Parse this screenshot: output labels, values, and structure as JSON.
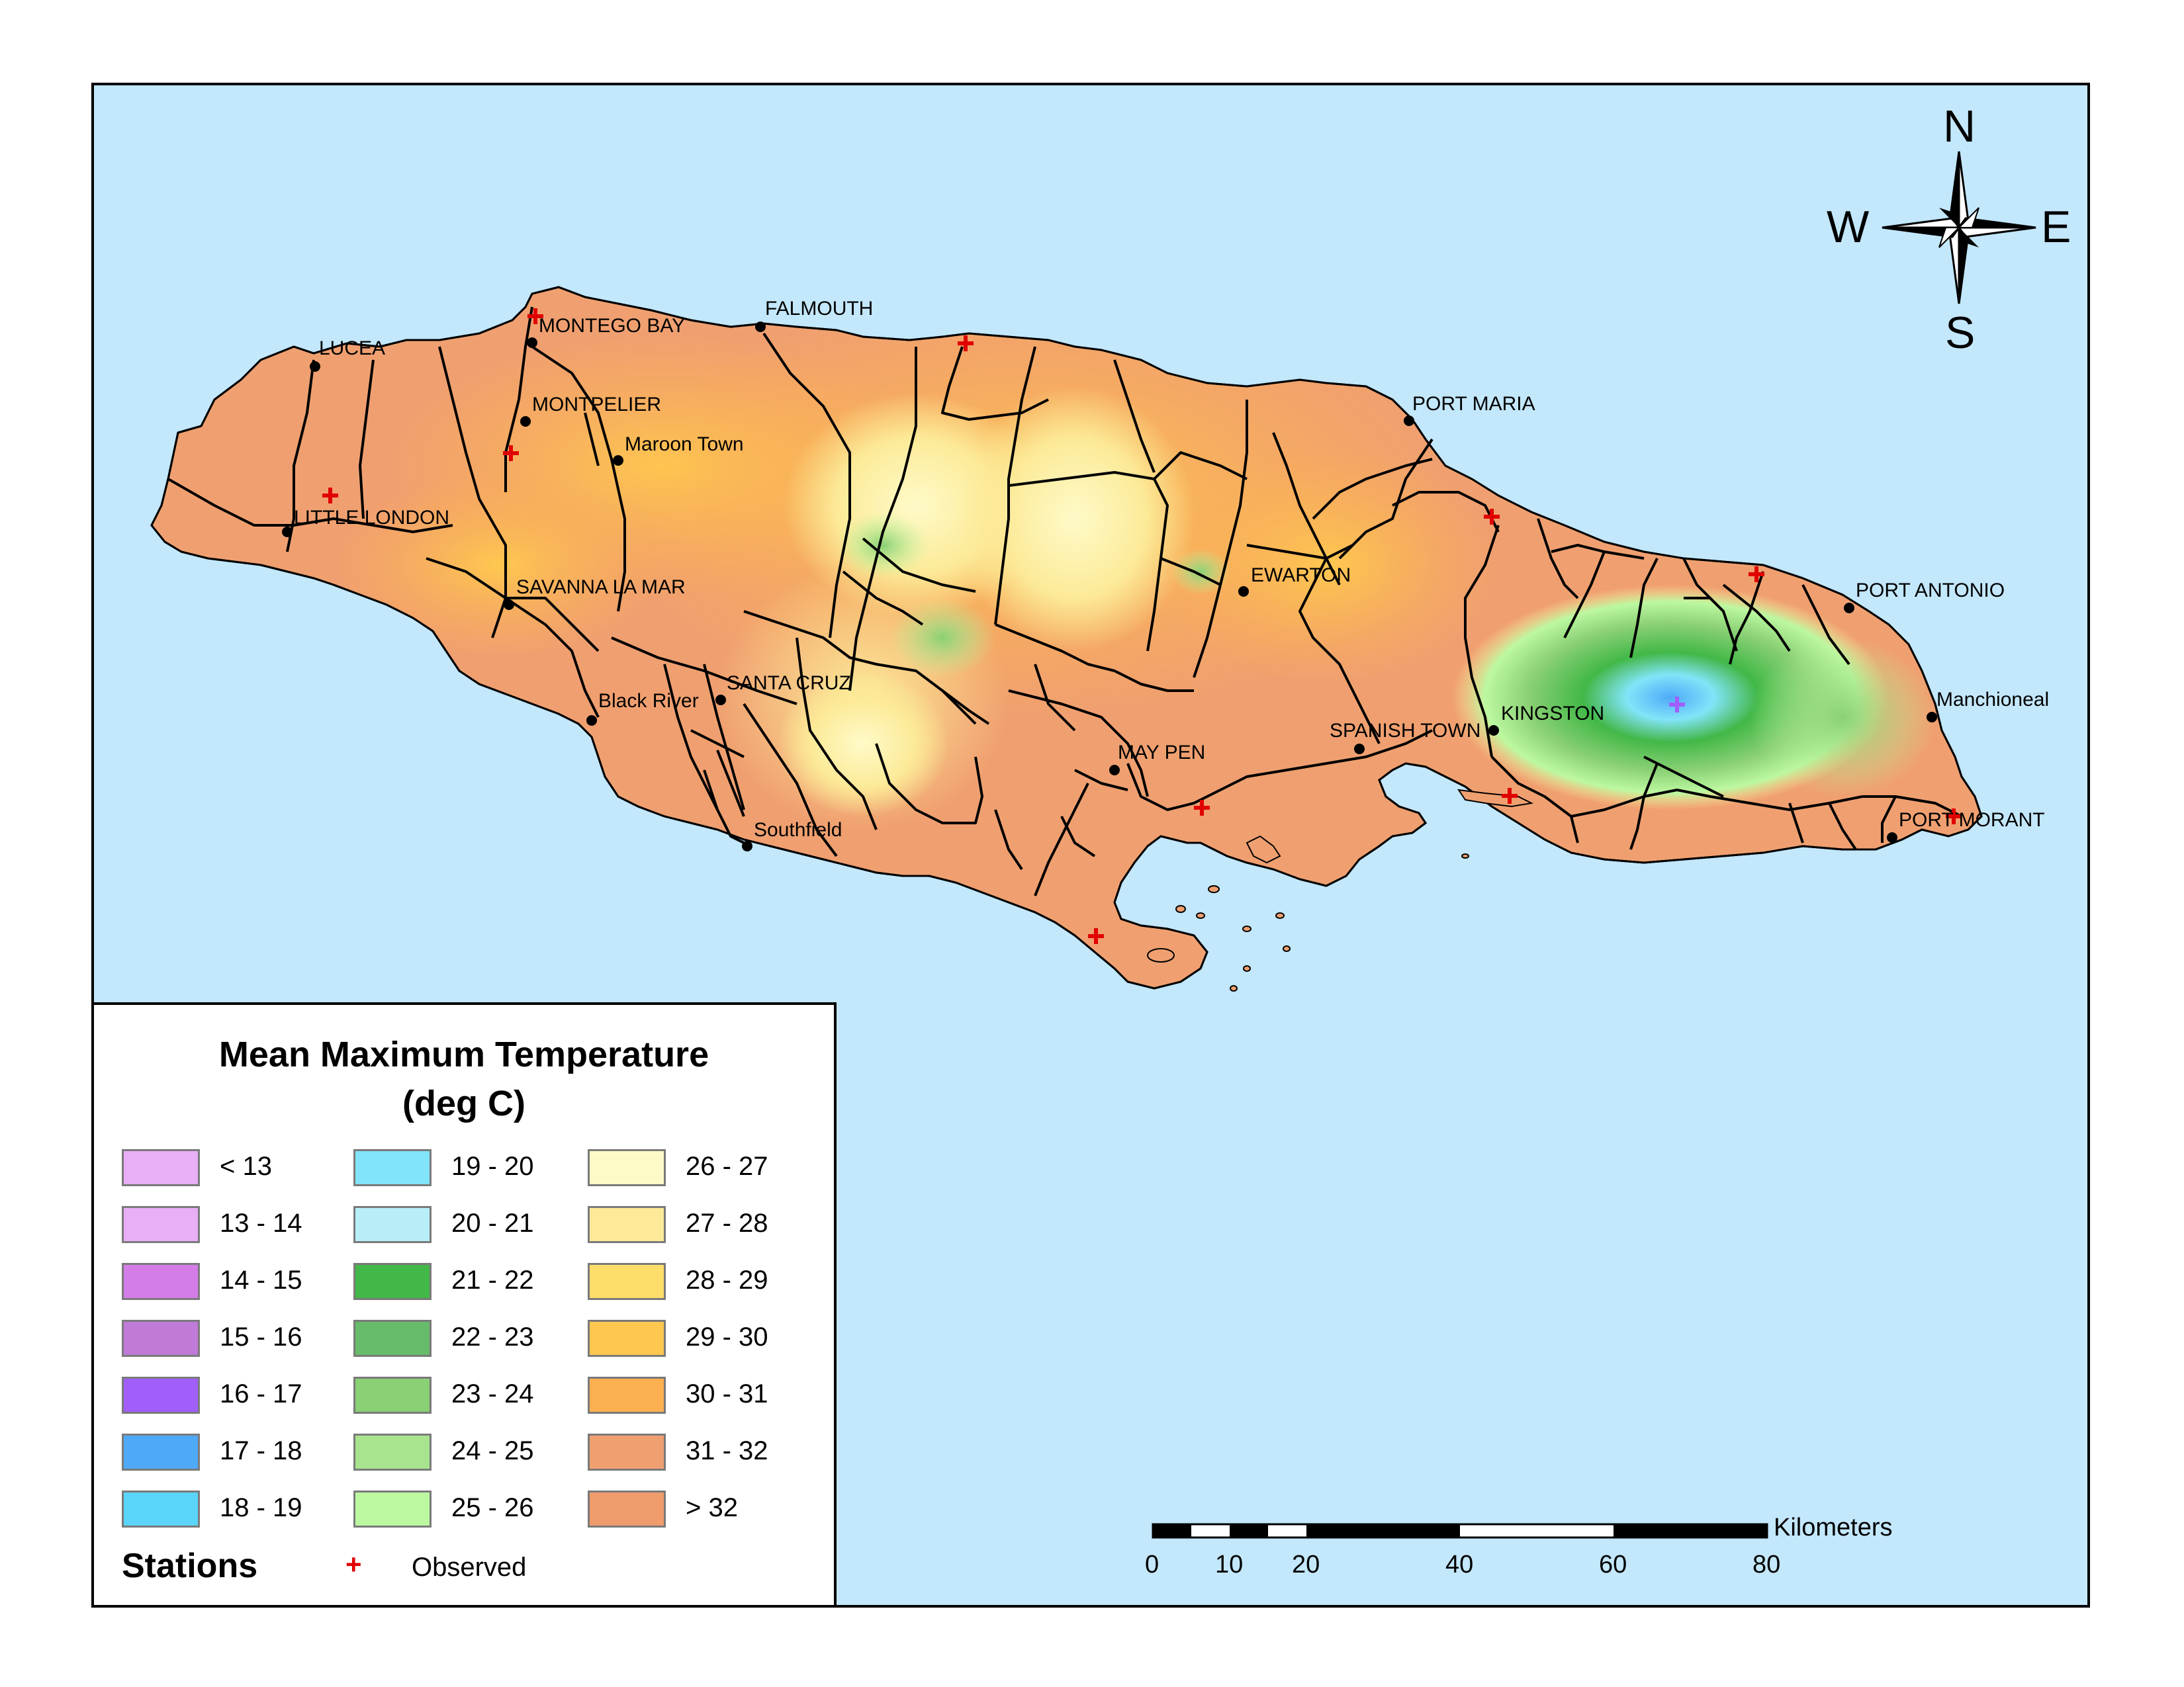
{
  "map": {
    "cities": [
      {
        "name": "LUCEA"
      },
      {
        "name": "MONTEGO BAY"
      },
      {
        "name": "FALMOUTH"
      },
      {
        "name": "MONTPELIER"
      },
      {
        "name": "Maroon Town"
      },
      {
        "name": "LITTLE LONDON"
      },
      {
        "name": "SAVANNA LA MAR"
      },
      {
        "name": "Black River"
      },
      {
        "name": "SANTA CRUZ"
      },
      {
        "name": "Southfield"
      },
      {
        "name": "MAY PEN"
      },
      {
        "name": "EWARTON"
      },
      {
        "name": "SPANISH TOWN"
      },
      {
        "name": "KINGSTON"
      },
      {
        "name": "PORT MARIA"
      },
      {
        "name": "PORT ANTONIO"
      },
      {
        "name": "Manchioneal"
      },
      {
        "name": "PORT MORANT"
      }
    ],
    "compass": {
      "n": "N",
      "s": "S",
      "e": "E",
      "w": "W"
    }
  },
  "legend": {
    "title_line1": "Mean Maximum Temperature",
    "title_line2": "(deg C)",
    "classes": [
      {
        "label": "< 13",
        "color": "#e8aef6"
      },
      {
        "label": "13 - 14",
        "color": "#e8aef6"
      },
      {
        "label": "14 - 15",
        "color": "#d47ce8"
      },
      {
        "label": "15 - 16",
        "color": "#c07ad8"
      },
      {
        "label": "16 - 17",
        "color": "#a05efa"
      },
      {
        "label": "17 - 18",
        "color": "#4eaaf8"
      },
      {
        "label": "18 - 19",
        "color": "#5ad4f8"
      },
      {
        "label": "19 - 20",
        "color": "#82e4f8"
      },
      {
        "label": "20 - 21",
        "color": "#b8eef8"
      },
      {
        "label": "21 - 22",
        "color": "#42b848"
      },
      {
        "label": "22 - 23",
        "color": "#66bc6a"
      },
      {
        "label": "23 - 24",
        "color": "#8ad074"
      },
      {
        "label": "24 - 25",
        "color": "#a8e48e"
      },
      {
        "label": "25 - 26",
        "color": "#bcf8a0"
      },
      {
        "label": "26 - 27",
        "color": "#fefac8"
      },
      {
        "label": "27 - 28",
        "color": "#fcea98"
      },
      {
        "label": "28 - 29",
        "color": "#fede6a"
      },
      {
        "label": "29 - 30",
        "color": "#fec850"
      },
      {
        "label": "30 - 31",
        "color": "#fcb050"
      },
      {
        "label": "31 - 32",
        "color": "#f0a070"
      },
      {
        "label": "> 32",
        "color": "#f09c6c"
      }
    ],
    "stations_heading": "Stations",
    "station_symbol": "+",
    "observed_label": "Observed"
  },
  "scalebar": {
    "unit": "Kilometers",
    "ticks": [
      "0",
      "10",
      "20",
      "40",
      "60",
      "80"
    ]
  }
}
